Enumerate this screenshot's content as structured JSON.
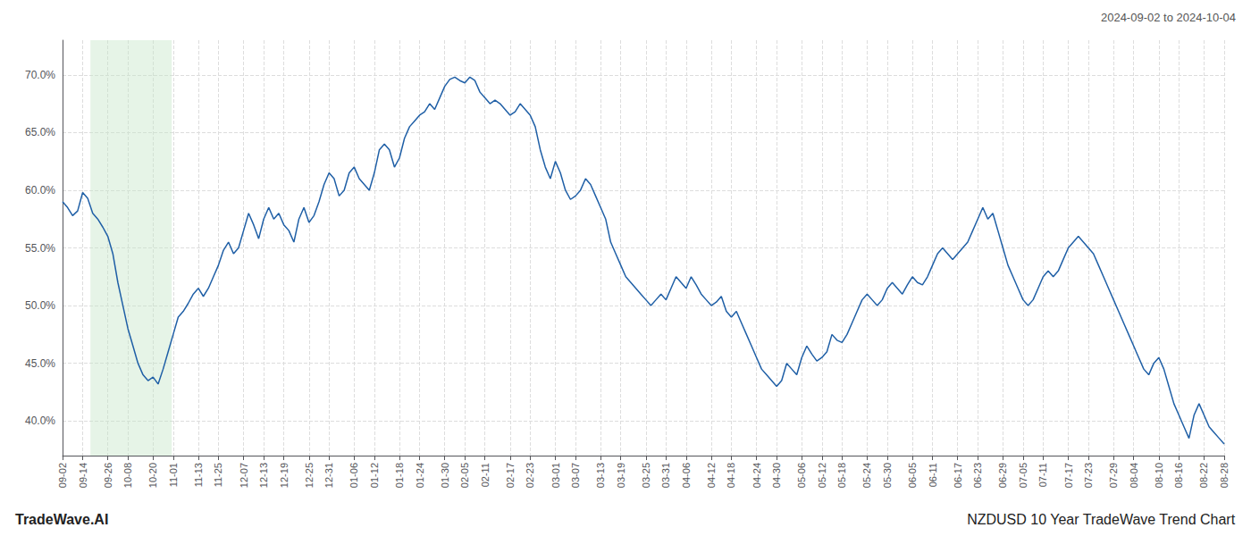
{
  "chart_data": {
    "type": "line",
    "title": "NZDUSD 10 Year TradeWave Trend Chart",
    "subtitle": "2024-09-02 to 2024-10-04",
    "annotations": [
      "TradeWave.AI"
    ],
    "color": "#1f5fa6",
    "grid": true,
    "ylim": [
      37.0,
      73.0
    ],
    "yticks": [
      {
        "value": 40,
        "label": "40.0%"
      },
      {
        "value": 45,
        "label": "45.0%"
      },
      {
        "value": 50,
        "label": "50.0%"
      },
      {
        "value": 55,
        "label": "55.0%"
      },
      {
        "value": 60,
        "label": "60.0%"
      },
      {
        "value": 65,
        "label": "65.0%"
      },
      {
        "value": 70,
        "label": "70.0%"
      }
    ],
    "shaded_span": {
      "from": 5.544,
      "to": 21.714,
      "color": "#c8e6c9"
    },
    "categories": [
      "09-02",
      null,
      null,
      null,
      "09-14",
      null,
      null,
      null,
      null,
      "09-26",
      null,
      null,
      null,
      "10-08",
      null,
      null,
      null,
      null,
      "10-20",
      null,
      null,
      null,
      "11-01",
      null,
      null,
      null,
      null,
      "11-13",
      null,
      null,
      null,
      "11-25",
      null,
      null,
      null,
      null,
      "12-07",
      null,
      null,
      null,
      "12-13",
      null,
      null,
      null,
      "12-19",
      null,
      null,
      null,
      null,
      "12-25",
      null,
      null,
      null,
      "12-31",
      null,
      null,
      null,
      null,
      "01-06",
      null,
      null,
      null,
      "01-12",
      null,
      null,
      null,
      null,
      "01-18",
      null,
      null,
      null,
      "01-24",
      null,
      null,
      null,
      null,
      "01-30",
      null,
      null,
      null,
      "02-05",
      null,
      null,
      null,
      "02-11",
      null,
      null,
      null,
      null,
      "02-17",
      null,
      null,
      null,
      "02-23",
      null,
      null,
      null,
      null,
      "03-01",
      null,
      null,
      null,
      "03-07",
      null,
      null,
      null,
      null,
      "03-13",
      null,
      null,
      null,
      "03-19",
      null,
      null,
      null,
      null,
      "03-25",
      null,
      null,
      null,
      "03-31",
      null,
      null,
      null,
      "04-06",
      null,
      null,
      null,
      null,
      "04-12",
      null,
      null,
      null,
      "04-18",
      null,
      null,
      null,
      null,
      "04-24",
      null,
      null,
      null,
      "04-30",
      null,
      null,
      null,
      null,
      "05-06",
      null,
      null,
      null,
      "05-12",
      null,
      null,
      null,
      "05-18",
      null,
      null,
      null,
      null,
      "05-24",
      null,
      null,
      null,
      "05-30",
      null,
      null,
      null,
      null,
      "06-05",
      null,
      null,
      null,
      "06-11",
      null,
      null,
      null,
      null,
      "06-17",
      null,
      null,
      null,
      "06-23",
      null,
      null,
      null,
      null,
      "06-29",
      null,
      null,
      null,
      "07-05",
      null,
      null,
      null,
      "07-11",
      null,
      null,
      null,
      null,
      "07-17",
      null,
      null,
      null,
      "07-23",
      null,
      null,
      null,
      null,
      "07-29",
      null,
      null,
      null,
      "08-04",
      null,
      null,
      null,
      null,
      "08-10",
      null,
      null,
      null,
      "08-16",
      null,
      null,
      null,
      null,
      "08-22",
      null,
      null,
      null,
      "08-28"
    ],
    "values": [
      59.0,
      58.5,
      57.8,
      58.2,
      59.8,
      59.3,
      58.0,
      57.5,
      56.8,
      56.0,
      54.5,
      52.0,
      50.0,
      48.0,
      46.5,
      45.0,
      44.0,
      43.5,
      43.8,
      43.2,
      44.5,
      46.0,
      47.5,
      49.0,
      49.5,
      50.2,
      51.0,
      51.5,
      50.8,
      51.5,
      52.5,
      53.5,
      54.8,
      55.5,
      54.5,
      55.0,
      56.5,
      58.0,
      57.0,
      55.8,
      57.5,
      58.5,
      57.5,
      58.0,
      57.0,
      56.5,
      55.5,
      57.5,
      58.5,
      57.2,
      57.8,
      59.0,
      60.5,
      61.5,
      61.0,
      59.5,
      60.0,
      61.5,
      62.0,
      61.0,
      60.5,
      60.0,
      61.5,
      63.5,
      64.0,
      63.5,
      62.0,
      62.8,
      64.5,
      65.5,
      66.0,
      66.5,
      66.8,
      67.5,
      67.0,
      68.0,
      69.0,
      69.6,
      69.8,
      69.5,
      69.3,
      69.8,
      69.5,
      68.5,
      68.0,
      67.5,
      67.8,
      67.5,
      67.0,
      66.5,
      66.8,
      67.5,
      67.0,
      66.5,
      65.5,
      63.5,
      62.0,
      61.0,
      62.5,
      61.5,
      60.0,
      59.2,
      59.5,
      60.0,
      61.0,
      60.5,
      59.5,
      58.5,
      57.5,
      55.5,
      54.5,
      53.5,
      52.5,
      52.0,
      51.5,
      51.0,
      50.5,
      50.0,
      50.5,
      51.0,
      50.5,
      51.5,
      52.5,
      52.0,
      51.5,
      52.5,
      51.8,
      51.0,
      50.5,
      50.0,
      50.3,
      50.8,
      49.5,
      49.0,
      49.5,
      48.5,
      47.5,
      46.5,
      45.5,
      44.5,
      44.0,
      43.5,
      43.0,
      43.5,
      45.0,
      44.5,
      44.0,
      45.5,
      46.5,
      45.8,
      45.2,
      45.5,
      46.0,
      47.5,
      47.0,
      46.8,
      47.5,
      48.5,
      49.5,
      50.5,
      51.0,
      50.5,
      50.0,
      50.5,
      51.5,
      52.0,
      51.5,
      51.0,
      51.8,
      52.5,
      52.0,
      51.8,
      52.5,
      53.5,
      54.5,
      55.0,
      54.5,
      54.0,
      54.5,
      55.0,
      55.5,
      56.5,
      57.5,
      58.5,
      57.5,
      58.0,
      56.5,
      55.0,
      53.5,
      52.5,
      51.5,
      50.5,
      50.0,
      50.5,
      51.5,
      52.5,
      53.0,
      52.5,
      53.0,
      54.0,
      55.0,
      55.5,
      56.0,
      55.5,
      55.0,
      54.5,
      53.5,
      52.5,
      51.5,
      50.5,
      49.5,
      48.5,
      47.5,
      46.5,
      45.5,
      44.5,
      44.0,
      45.0,
      45.5,
      44.5,
      43.0,
      41.5,
      40.5,
      39.5,
      38.5,
      40.5,
      41.5,
      40.5,
      39.5,
      39.0,
      38.5,
      38.0
    ]
  }
}
